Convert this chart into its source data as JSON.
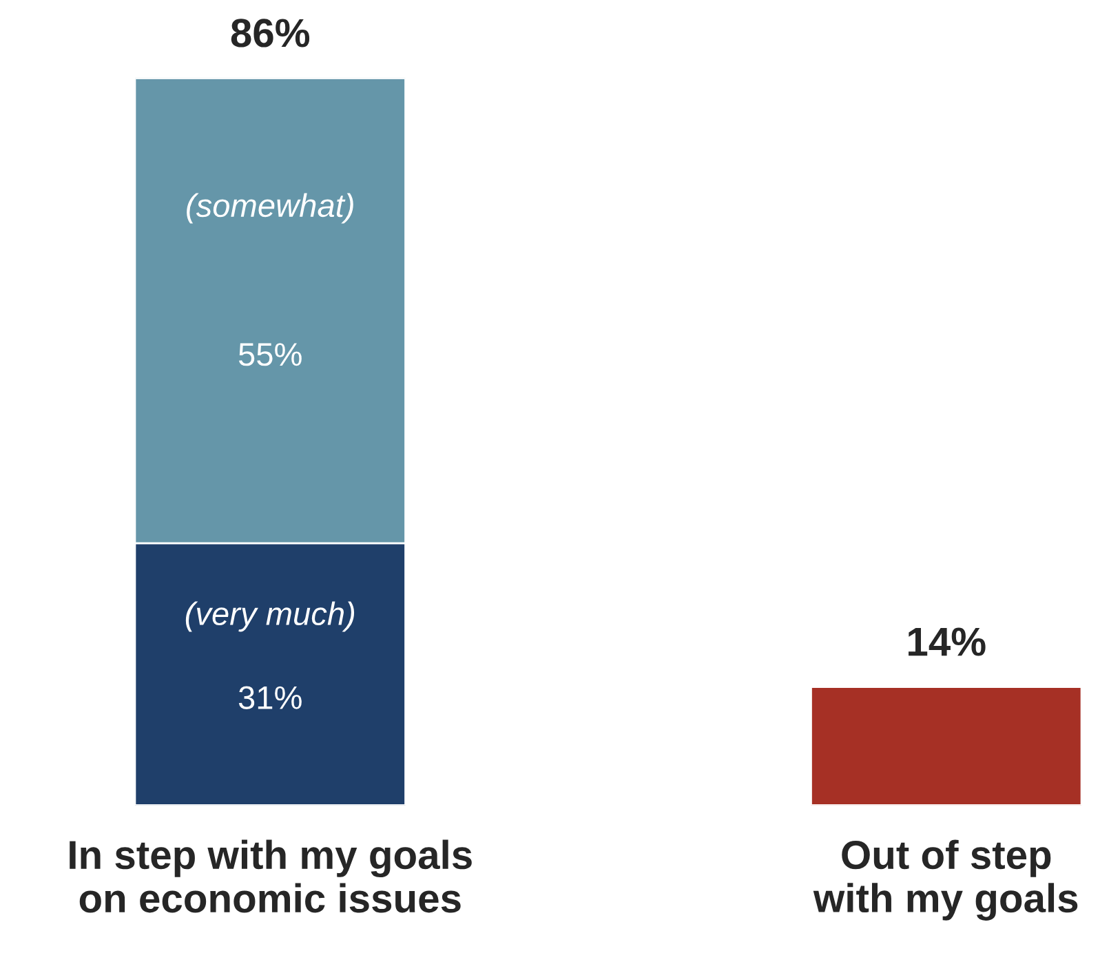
{
  "chart_data": {
    "type": "bar",
    "stacked": true,
    "categories": [
      "In step with my goals\non economic issues",
      "Out of step\nwith my goals"
    ],
    "series": [
      {
        "name": "(very much)",
        "color": "#1f3f6a",
        "values": [
          31,
          null
        ],
        "value_labels": [
          "31%",
          null
        ]
      },
      {
        "name": "(somewhat)",
        "color": "#6596a9",
        "values": [
          55,
          null
        ],
        "value_labels": [
          "55%",
          null
        ]
      },
      {
        "color": "#a63025",
        "values": [
          null,
          14
        ]
      }
    ],
    "totals": [
      "86%",
      "14%"
    ],
    "legend": false,
    "grid": false,
    "tick_labels": "x"
  }
}
